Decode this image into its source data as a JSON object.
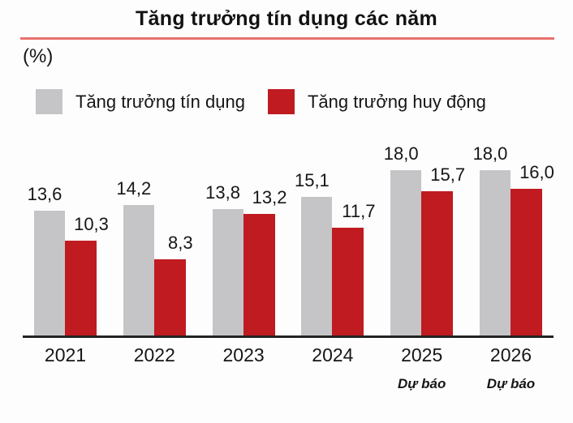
{
  "chart_data": {
    "type": "bar",
    "title": "Tăng trưởng tín dụng các năm",
    "unit_label": "(%)",
    "categories": [
      "2021",
      "2022",
      "2023",
      "2024",
      "2025",
      "2026"
    ],
    "series": [
      {
        "name": "Tăng trưởng tín dụng",
        "color": "#c5c5c7",
        "values": [
          13.6,
          14.2,
          13.8,
          15.1,
          18.0,
          18.0
        ],
        "labels": [
          "13,6",
          "14,2",
          "13,8",
          "15,1",
          "18,0",
          "18,0"
        ]
      },
      {
        "name": "Tăng trưởng huy động",
        "color": "#bf1b21",
        "values": [
          10.3,
          8.3,
          13.2,
          11.7,
          15.7,
          16.0
        ],
        "labels": [
          "10,3",
          "8,3",
          "13,2",
          "11,7",
          "15,7",
          "16,0"
        ]
      }
    ],
    "forecast_note": "Dự báo",
    "forecast_categories": [
      "2025",
      "2026"
    ],
    "ylim": [
      0,
      20
    ],
    "grid": false,
    "legend_position": "top-left",
    "value_decimal_separator": ","
  },
  "colors": {
    "title_underline": "#e8716e",
    "axis_line": "#232323",
    "text": "#161616",
    "background": "#fdfdfd"
  }
}
